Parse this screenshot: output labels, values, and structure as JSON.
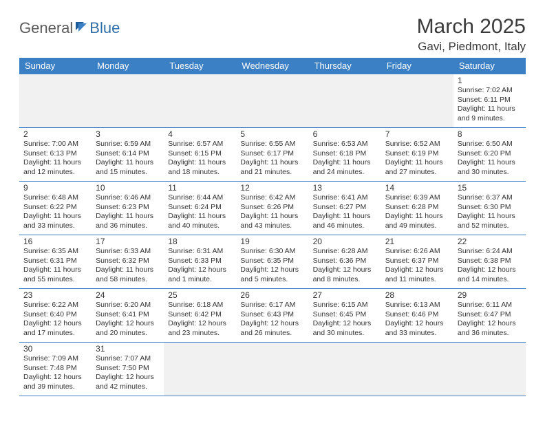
{
  "logo": {
    "general": "General",
    "blue": "Blue"
  },
  "title": "March 2025",
  "subtitle": "Gavi, Piedmont, Italy",
  "colors": {
    "header_bg": "#3b7fc4",
    "header_text": "#ffffff",
    "text": "#333333",
    "blank_bg": "#f1f1f1",
    "border": "#3b7fc4"
  },
  "daynames": [
    "Sunday",
    "Monday",
    "Tuesday",
    "Wednesday",
    "Thursday",
    "Friday",
    "Saturday"
  ],
  "weeks": [
    [
      null,
      null,
      null,
      null,
      null,
      null,
      {
        "n": "1",
        "sr": "Sunrise: 7:02 AM",
        "ss": "Sunset: 6:11 PM",
        "d1": "Daylight: 11 hours",
        "d2": "and 9 minutes."
      }
    ],
    [
      {
        "n": "2",
        "sr": "Sunrise: 7:00 AM",
        "ss": "Sunset: 6:13 PM",
        "d1": "Daylight: 11 hours",
        "d2": "and 12 minutes."
      },
      {
        "n": "3",
        "sr": "Sunrise: 6:59 AM",
        "ss": "Sunset: 6:14 PM",
        "d1": "Daylight: 11 hours",
        "d2": "and 15 minutes."
      },
      {
        "n": "4",
        "sr": "Sunrise: 6:57 AM",
        "ss": "Sunset: 6:15 PM",
        "d1": "Daylight: 11 hours",
        "d2": "and 18 minutes."
      },
      {
        "n": "5",
        "sr": "Sunrise: 6:55 AM",
        "ss": "Sunset: 6:17 PM",
        "d1": "Daylight: 11 hours",
        "d2": "and 21 minutes."
      },
      {
        "n": "6",
        "sr": "Sunrise: 6:53 AM",
        "ss": "Sunset: 6:18 PM",
        "d1": "Daylight: 11 hours",
        "d2": "and 24 minutes."
      },
      {
        "n": "7",
        "sr": "Sunrise: 6:52 AM",
        "ss": "Sunset: 6:19 PM",
        "d1": "Daylight: 11 hours",
        "d2": "and 27 minutes."
      },
      {
        "n": "8",
        "sr": "Sunrise: 6:50 AM",
        "ss": "Sunset: 6:20 PM",
        "d1": "Daylight: 11 hours",
        "d2": "and 30 minutes."
      }
    ],
    [
      {
        "n": "9",
        "sr": "Sunrise: 6:48 AM",
        "ss": "Sunset: 6:22 PM",
        "d1": "Daylight: 11 hours",
        "d2": "and 33 minutes."
      },
      {
        "n": "10",
        "sr": "Sunrise: 6:46 AM",
        "ss": "Sunset: 6:23 PM",
        "d1": "Daylight: 11 hours",
        "d2": "and 36 minutes."
      },
      {
        "n": "11",
        "sr": "Sunrise: 6:44 AM",
        "ss": "Sunset: 6:24 PM",
        "d1": "Daylight: 11 hours",
        "d2": "and 40 minutes."
      },
      {
        "n": "12",
        "sr": "Sunrise: 6:42 AM",
        "ss": "Sunset: 6:26 PM",
        "d1": "Daylight: 11 hours",
        "d2": "and 43 minutes."
      },
      {
        "n": "13",
        "sr": "Sunrise: 6:41 AM",
        "ss": "Sunset: 6:27 PM",
        "d1": "Daylight: 11 hours",
        "d2": "and 46 minutes."
      },
      {
        "n": "14",
        "sr": "Sunrise: 6:39 AM",
        "ss": "Sunset: 6:28 PM",
        "d1": "Daylight: 11 hours",
        "d2": "and 49 minutes."
      },
      {
        "n": "15",
        "sr": "Sunrise: 6:37 AM",
        "ss": "Sunset: 6:30 PM",
        "d1": "Daylight: 11 hours",
        "d2": "and 52 minutes."
      }
    ],
    [
      {
        "n": "16",
        "sr": "Sunrise: 6:35 AM",
        "ss": "Sunset: 6:31 PM",
        "d1": "Daylight: 11 hours",
        "d2": "and 55 minutes."
      },
      {
        "n": "17",
        "sr": "Sunrise: 6:33 AM",
        "ss": "Sunset: 6:32 PM",
        "d1": "Daylight: 11 hours",
        "d2": "and 58 minutes."
      },
      {
        "n": "18",
        "sr": "Sunrise: 6:31 AM",
        "ss": "Sunset: 6:33 PM",
        "d1": "Daylight: 12 hours",
        "d2": "and 1 minute."
      },
      {
        "n": "19",
        "sr": "Sunrise: 6:30 AM",
        "ss": "Sunset: 6:35 PM",
        "d1": "Daylight: 12 hours",
        "d2": "and 5 minutes."
      },
      {
        "n": "20",
        "sr": "Sunrise: 6:28 AM",
        "ss": "Sunset: 6:36 PM",
        "d1": "Daylight: 12 hours",
        "d2": "and 8 minutes."
      },
      {
        "n": "21",
        "sr": "Sunrise: 6:26 AM",
        "ss": "Sunset: 6:37 PM",
        "d1": "Daylight: 12 hours",
        "d2": "and 11 minutes."
      },
      {
        "n": "22",
        "sr": "Sunrise: 6:24 AM",
        "ss": "Sunset: 6:38 PM",
        "d1": "Daylight: 12 hours",
        "d2": "and 14 minutes."
      }
    ],
    [
      {
        "n": "23",
        "sr": "Sunrise: 6:22 AM",
        "ss": "Sunset: 6:40 PM",
        "d1": "Daylight: 12 hours",
        "d2": "and 17 minutes."
      },
      {
        "n": "24",
        "sr": "Sunrise: 6:20 AM",
        "ss": "Sunset: 6:41 PM",
        "d1": "Daylight: 12 hours",
        "d2": "and 20 minutes."
      },
      {
        "n": "25",
        "sr": "Sunrise: 6:18 AM",
        "ss": "Sunset: 6:42 PM",
        "d1": "Daylight: 12 hours",
        "d2": "and 23 minutes."
      },
      {
        "n": "26",
        "sr": "Sunrise: 6:17 AM",
        "ss": "Sunset: 6:43 PM",
        "d1": "Daylight: 12 hours",
        "d2": "and 26 minutes."
      },
      {
        "n": "27",
        "sr": "Sunrise: 6:15 AM",
        "ss": "Sunset: 6:45 PM",
        "d1": "Daylight: 12 hours",
        "d2": "and 30 minutes."
      },
      {
        "n": "28",
        "sr": "Sunrise: 6:13 AM",
        "ss": "Sunset: 6:46 PM",
        "d1": "Daylight: 12 hours",
        "d2": "and 33 minutes."
      },
      {
        "n": "29",
        "sr": "Sunrise: 6:11 AM",
        "ss": "Sunset: 6:47 PM",
        "d1": "Daylight: 12 hours",
        "d2": "and 36 minutes."
      }
    ],
    [
      {
        "n": "30",
        "sr": "Sunrise: 7:09 AM",
        "ss": "Sunset: 7:48 PM",
        "d1": "Daylight: 12 hours",
        "d2": "and 39 minutes."
      },
      {
        "n": "31",
        "sr": "Sunrise: 7:07 AM",
        "ss": "Sunset: 7:50 PM",
        "d1": "Daylight: 12 hours",
        "d2": "and 42 minutes."
      },
      null,
      null,
      null,
      null,
      null
    ]
  ]
}
